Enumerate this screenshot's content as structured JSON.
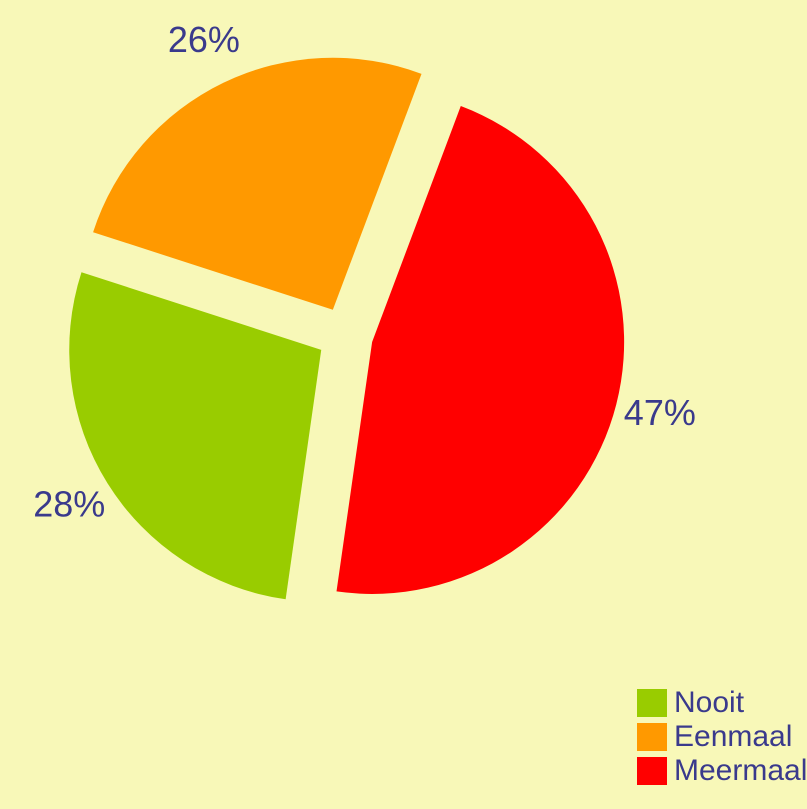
{
  "chart_data": {
    "type": "pie",
    "categories": [
      "Nooit",
      "Eenmaal",
      "Meermaals"
    ],
    "values": [
      28,
      26,
      47
    ],
    "value_labels": [
      "28%",
      "26%",
      "47%"
    ],
    "colors": [
      "#99cc00",
      "#ff9900",
      "#ff0000"
    ],
    "legend": "bottom-right"
  }
}
